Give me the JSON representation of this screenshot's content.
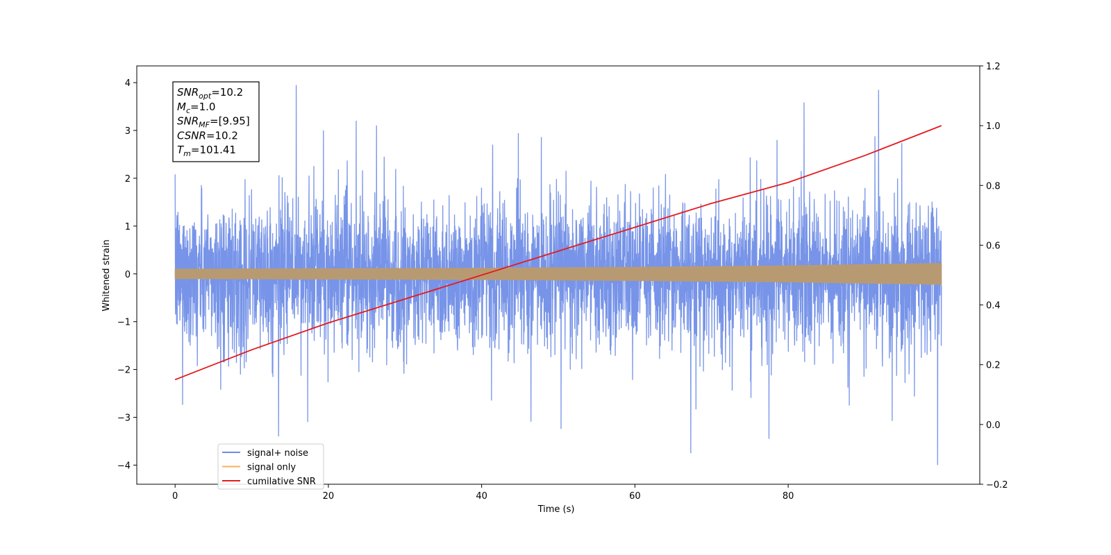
{
  "chart_data": {
    "type": "line",
    "xlabel": "Time (s)",
    "ylabel": "Whitened strain",
    "xlim": [
      -5,
      105
    ],
    "ylim": [
      -4.4,
      4.35
    ],
    "y2lim": [
      -0.2,
      1.2
    ],
    "x_ticks": [
      0,
      20,
      40,
      60,
      80
    ],
    "y_ticks": [
      -4,
      -3,
      -2,
      -1,
      0,
      1,
      2,
      3,
      4
    ],
    "y2_ticks": [
      -0.2,
      0.0,
      0.2,
      0.4,
      0.6,
      0.8,
      1.0,
      1.2
    ],
    "y2_tick_labels": [
      "−0.2",
      "0.0",
      "0.2",
      "0.4",
      "0.6",
      "0.8",
      "1.0",
      "1.2"
    ],
    "legend_position": "lower-left",
    "colors": {
      "signal_noise": "#6b8be6",
      "signal_only": "#f5b556",
      "signal_overlap": "#b89a72",
      "cumulative": "#e41a1c"
    },
    "series": [
      {
        "name": "signal+ noise",
        "axis": "left",
        "description": "noise band roughly ±1.7 with spikes up to about ±4",
        "x_range": [
          0,
          100
        ],
        "band_rms": 0.75,
        "peaks": [
          {
            "x": 15.8,
            "y": 3.95
          },
          {
            "x": 91.8,
            "y": 3.85
          },
          {
            "x": 99.5,
            "y": -4.0
          },
          {
            "x": 67.3,
            "y": -3.75
          },
          {
            "x": 77.5,
            "y": -3.45
          },
          {
            "x": 13.5,
            "y": -3.4
          }
        ]
      },
      {
        "name": "signal only",
        "axis": "left",
        "x": [
          0,
          20,
          40,
          60,
          80,
          100
        ],
        "amplitude": [
          0.1,
          0.11,
          0.12,
          0.14,
          0.17,
          0.22
        ]
      },
      {
        "name": "cumilative SNR",
        "axis": "right",
        "x": [
          0,
          5,
          10,
          20,
          30,
          40,
          50,
          60,
          70,
          80,
          90,
          100
        ],
        "y": [
          0.15,
          0.2,
          0.25,
          0.34,
          0.42,
          0.5,
          0.58,
          0.66,
          0.74,
          0.81,
          0.9,
          1.0
        ]
      }
    ],
    "annotation": [
      {
        "base": "SNR",
        "sub": "opt",
        "value": "=10.2"
      },
      {
        "base": "M",
        "sub": "c",
        "value": "=1.0"
      },
      {
        "base": "SNR",
        "sub": "MF",
        "value": "=[9.95]"
      },
      {
        "base": "CSNR",
        "sub": "",
        "value": "=10.2"
      },
      {
        "base": "T",
        "sub": "m",
        "value": "=101.41"
      }
    ]
  }
}
